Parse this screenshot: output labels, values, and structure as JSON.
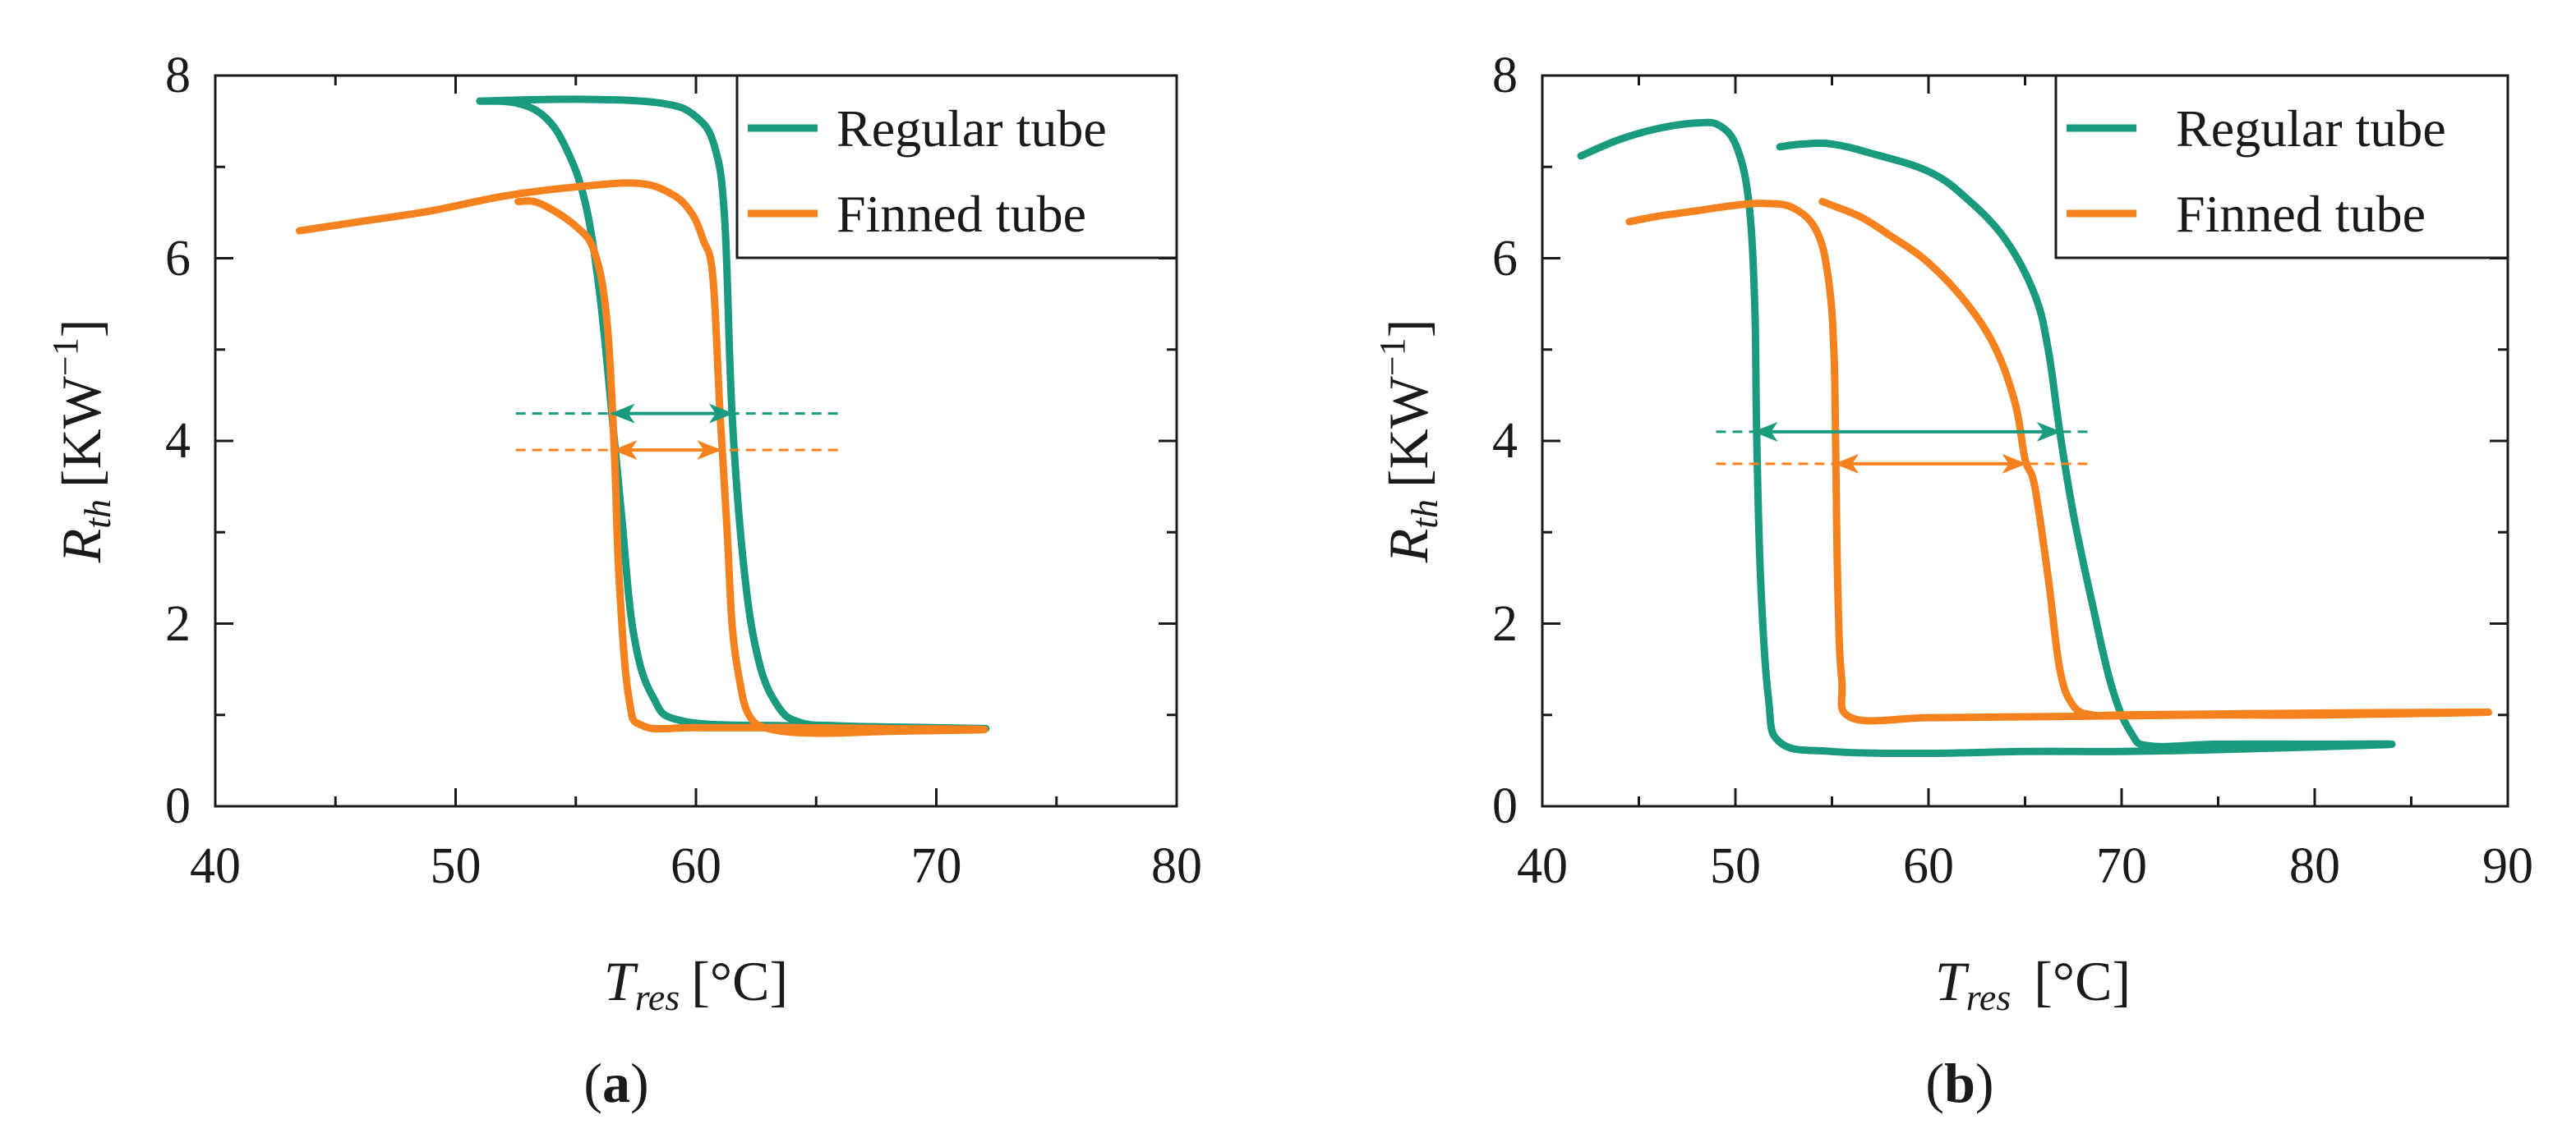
{
  "colors": {
    "regular": "#1a9a7e",
    "finned": "#f5821f",
    "axis": "#1a1a1a"
  },
  "chart_data": [
    {
      "type": "line",
      "panel": "a",
      "caption_open": "(",
      "caption_letter": "a",
      "caption_close": ")",
      "xlabel_main": "T",
      "xlabel_sub": "res",
      "xlabel_unit": "[°C]",
      "ylabel_main": "R",
      "ylabel_sub": "th",
      "ylabel_unit_open": "[KW",
      "ylabel_unit_sup": "−1",
      "ylabel_unit_close": "]",
      "xlim": [
        40,
        80
      ],
      "ylim": [
        0,
        8
      ],
      "xticks": [
        "40",
        "50",
        "60",
        "70",
        "80"
      ],
      "yticks": [
        "0",
        "2",
        "4",
        "6",
        "8"
      ],
      "legend": [
        "Regular tube",
        "Finned tube"
      ],
      "legend_position": "top-right",
      "series": [
        {
          "name": "Regular tube",
          "color": "regular",
          "x": [
            51,
            55,
            58.5,
            60.0,
            60.8,
            61.2,
            61.5,
            62.0,
            62.6,
            63.4,
            64.3,
            66,
            70,
            72,
            68,
            64,
            59.5,
            58.2,
            57.4,
            56.9,
            56.5,
            56.0,
            55.4,
            54.6,
            53.7,
            52.5,
            51
          ],
          "y": [
            7.72,
            7.74,
            7.7,
            7.55,
            7.2,
            6.4,
            4.3,
            2.6,
            1.6,
            1.1,
            0.92,
            0.88,
            0.86,
            0.85,
            0.86,
            0.88,
            0.93,
            1.2,
            1.9,
            3.2,
            4.3,
            5.6,
            6.6,
            7.2,
            7.55,
            7.7,
            7.72
          ]
        },
        {
          "name": "Finned tube",
          "color": "finned",
          "x": [
            43.5,
            46,
            49,
            52,
            55,
            57.6,
            59,
            59.8,
            60.3,
            60.7,
            61.0,
            61.3,
            61.5,
            61.8,
            62.2,
            63,
            65,
            68,
            72,
            68,
            64,
            60,
            57.8,
            57.2,
            56.8,
            56.6,
            56.3,
            55.8,
            55,
            53.5,
            52.6
          ],
          "y": [
            6.3,
            6.4,
            6.52,
            6.68,
            6.78,
            6.82,
            6.7,
            6.5,
            6.2,
            5.8,
            4.3,
            3.0,
            2.0,
            1.4,
            1.0,
            0.85,
            0.8,
            0.82,
            0.84,
            0.85,
            0.86,
            0.86,
            0.88,
            1.2,
            2.5,
            3.9,
            5.3,
            6.05,
            6.35,
            6.6,
            6.62
          ]
        }
      ],
      "annotations": [
        {
          "color": "regular",
          "y": 4.3,
          "x1": 56.5,
          "x2": 61.5,
          "dash_from": 52.5,
          "dash_to": 66
        },
        {
          "color": "finned",
          "y": 3.9,
          "x1": 56.6,
          "x2": 61.0,
          "dash_from": 52.5,
          "dash_to": 66
        }
      ]
    },
    {
      "type": "line",
      "panel": "b",
      "caption_open": "(",
      "caption_letter": "b",
      "caption_close": ")",
      "xlabel_main": "T",
      "xlabel_sub": "res",
      "xlabel_unit": "[°C]",
      "ylabel_main": "R",
      "ylabel_sub": "th",
      "ylabel_unit_open": "[KW",
      "ylabel_unit_sup": "−1",
      "ylabel_unit_close": "]",
      "xlim": [
        40,
        90
      ],
      "ylim": [
        0,
        8
      ],
      "xticks": [
        "40",
        "50",
        "60",
        "70",
        "80",
        "90"
      ],
      "yticks": [
        "0",
        "2",
        "4",
        "6",
        "8"
      ],
      "legend": [
        "Regular tube",
        "Finned tube"
      ],
      "legend_position": "top-right",
      "series": [
        {
          "name": "Regular tube",
          "color": "regular",
          "x": [
            42,
            44,
            46,
            48,
            49.2,
            50.1,
            50.7,
            51.0,
            51.1,
            51.3,
            51.7,
            52.3,
            55,
            60,
            65,
            70,
            75,
            80,
            84,
            80,
            75,
            71.5,
            70.5,
            69.5,
            68.5,
            67.5,
            66.8,
            66.2,
            65.5,
            64,
            62,
            60,
            57,
            55,
            53.5,
            52.3
          ],
          "y": [
            7.12,
            7.3,
            7.42,
            7.48,
            7.45,
            7.2,
            6.6,
            5.5,
            4.1,
            2.5,
            1.2,
            0.7,
            0.6,
            0.58,
            0.6,
            0.6,
            0.62,
            0.65,
            0.68,
            0.68,
            0.68,
            0.66,
            0.8,
            1.3,
            2.2,
            3.2,
            4.1,
            5.0,
            5.6,
            6.2,
            6.65,
            6.95,
            7.15,
            7.25,
            7.25,
            7.22
          ]
        },
        {
          "name": "Finned tube",
          "color": "finned",
          "x": [
            44.5,
            46,
            48,
            50,
            51.5,
            53,
            54.2,
            54.8,
            55.1,
            55.2,
            55.3,
            55.5,
            56,
            60,
            65,
            70,
            75,
            80,
            89,
            80,
            75,
            70,
            68.5,
            67.5,
            66.8,
            66.2,
            65.5,
            65.0,
            64.5,
            63.5,
            62,
            60,
            58,
            56.5,
            55,
            54.5
          ],
          "y": [
            6.4,
            6.46,
            6.52,
            6.58,
            6.6,
            6.55,
            6.3,
            5.8,
            5.0,
            3.8,
            2.4,
            1.4,
            0.97,
            0.97,
            0.98,
            0.99,
            1.0,
            1.0,
            1.03,
            1.02,
            1.01,
            1.0,
            1.0,
            1.1,
            1.5,
            2.5,
            3.5,
            3.8,
            4.4,
            5.0,
            5.5,
            5.95,
            6.25,
            6.45,
            6.58,
            6.62
          ]
        }
      ],
      "annotations": [
        {
          "color": "regular",
          "y": 4.1,
          "x1": 51.0,
          "x2": 66.8,
          "dash_from": 49,
          "dash_to": 68.5
        },
        {
          "color": "finned",
          "y": 3.75,
          "x1": 55.2,
          "x2": 65.0,
          "dash_from": 49,
          "dash_to": 68.5
        }
      ]
    }
  ]
}
